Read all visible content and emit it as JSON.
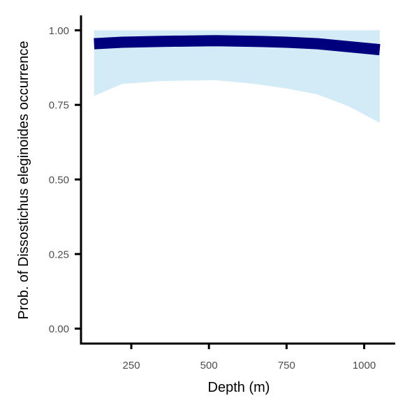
{
  "chart_data": {
    "type": "line",
    "title": "",
    "xlabel": "Depth (m)",
    "ylabel": "Prob. of  Dissostichus eleginoides  occurrence",
    "xlim": [
      88,
      1100
    ],
    "ylim": [
      -0.05,
      1.05
    ],
    "x_ticks": [
      250,
      500,
      750,
      1000
    ],
    "x_tick_labels": [
      "250",
      "500",
      "750",
      "1000"
    ],
    "y_ticks": [
      0.0,
      0.25,
      0.5,
      0.75,
      1.0
    ],
    "y_tick_labels": [
      "0.00",
      "0.25",
      "0.50",
      "0.75",
      "1.00"
    ],
    "grid": false,
    "colors": {
      "line": "#00007f",
      "band": "#d2ebf7",
      "axis": "#000000"
    },
    "series": [
      {
        "x": [
          130,
          220,
          350,
          520,
          650,
          750,
          850,
          950,
          1050
        ],
        "y": [
          0.955,
          0.96,
          0.963,
          0.965,
          0.963,
          0.96,
          0.955,
          0.945,
          0.935
        ],
        "lower": [
          0.78,
          0.82,
          0.83,
          0.833,
          0.82,
          0.805,
          0.785,
          0.745,
          0.69
        ],
        "upper": [
          1.0,
          1.0,
          1.0,
          1.0,
          1.0,
          1.0,
          1.0,
          1.0,
          1.0
        ]
      }
    ]
  }
}
